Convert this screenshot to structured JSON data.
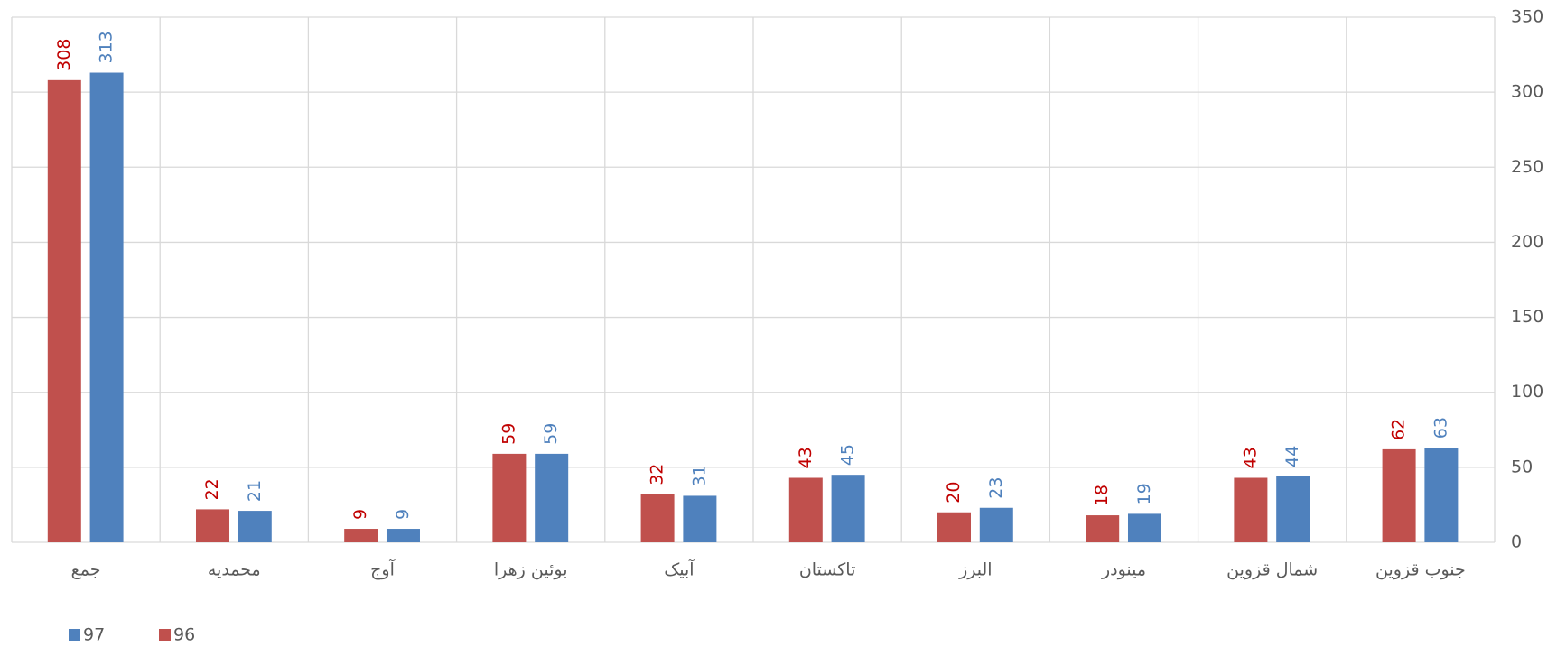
{
  "chart_data": {
    "type": "bar",
    "categories": [
      "جمع",
      "محمدیه",
      "آوج",
      "بوئین زهرا",
      "آبیک",
      "تاکستان",
      "البرز",
      "مینودر",
      "شمال قزوین",
      "جنوب قزوین"
    ],
    "series": [
      {
        "name": "96",
        "color": "#c0504d",
        "label_color": "#c00000",
        "values": [
          308,
          22,
          9,
          59,
          32,
          43,
          20,
          18,
          43,
          62
        ]
      },
      {
        "name": "97",
        "color": "#4f81bd",
        "label_color": "#4f81bd",
        "values": [
          313,
          21,
          9,
          59,
          31,
          45,
          23,
          19,
          44,
          63
        ]
      }
    ],
    "ylim": [
      0,
      350
    ],
    "yticks": [
      0,
      50,
      100,
      150,
      200,
      250,
      300,
      350
    ],
    "grid": true,
    "y_axis_side": "right",
    "legend": "bottom-left"
  }
}
